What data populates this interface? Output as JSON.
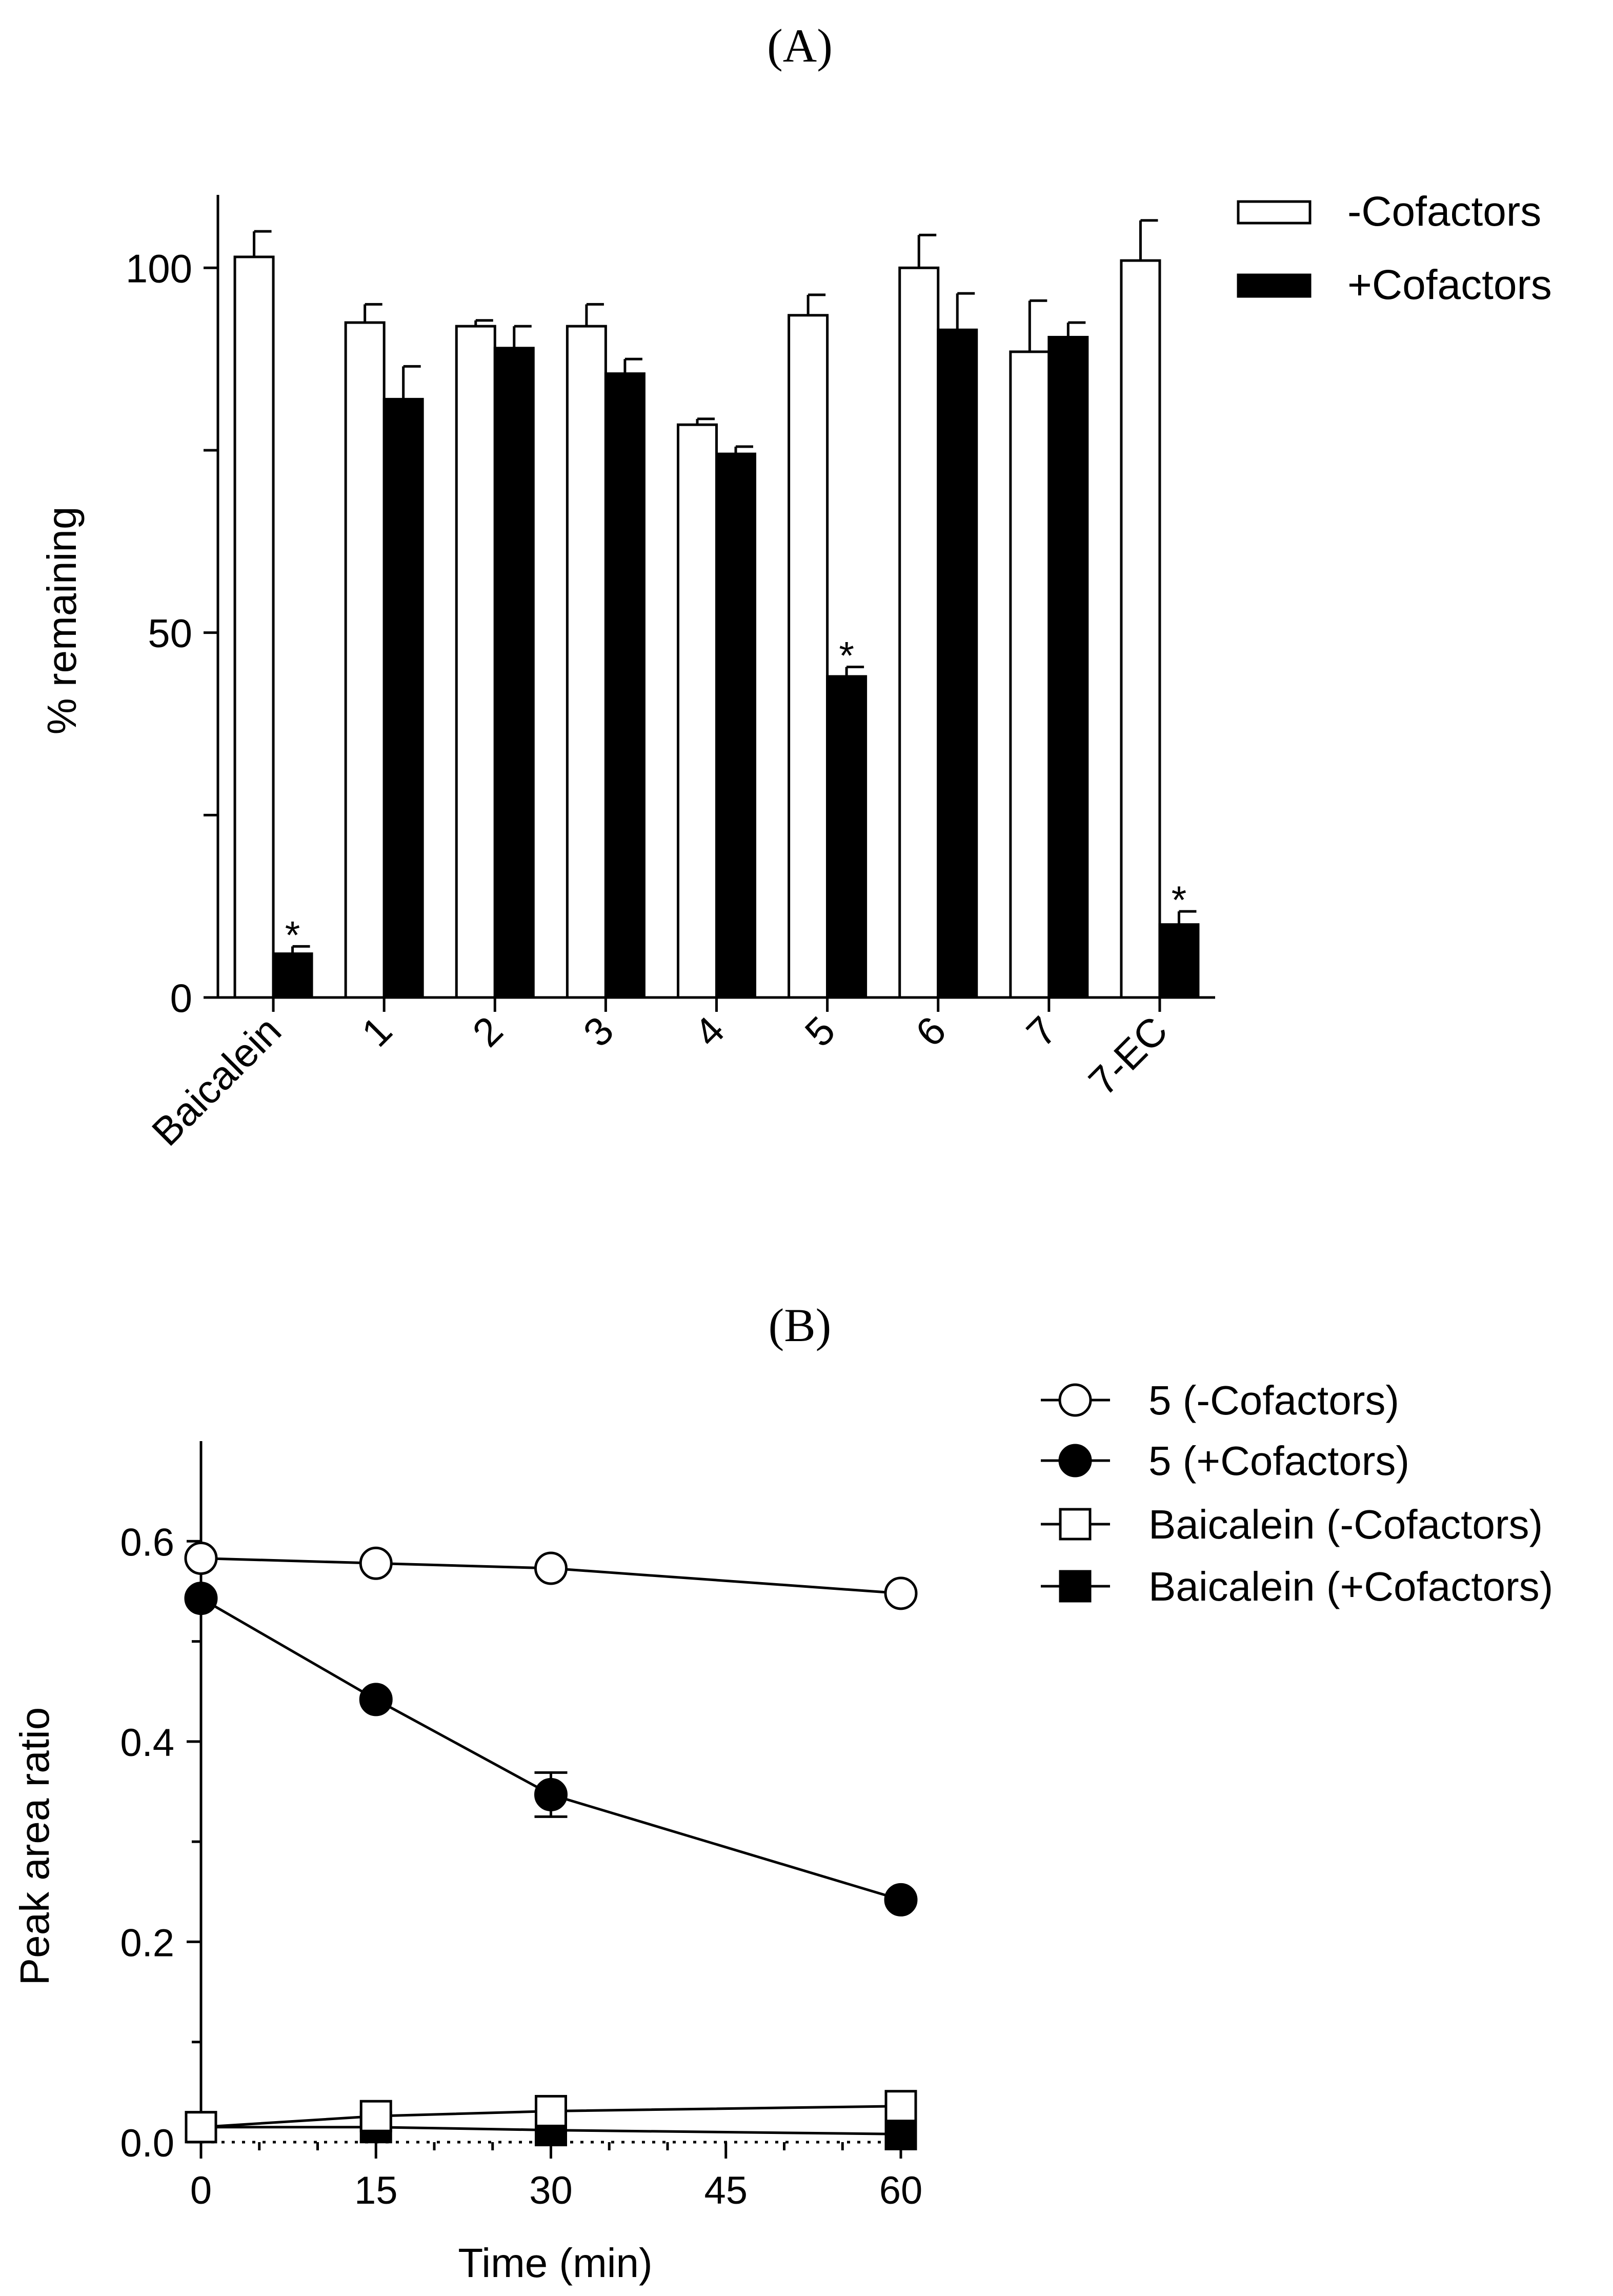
{
  "colors": {
    "ink": "#000000",
    "open": "#ffffff",
    "filled": "#000000"
  },
  "chart_data": [
    {
      "panel_label": "(A)",
      "type": "bar",
      "title": "",
      "xlabel": "",
      "ylabel": "% remaining",
      "ylim": [
        0,
        110
      ],
      "yticks": [
        "0",
        "50",
        "100"
      ],
      "categories": [
        "Baicalein",
        "1",
        "2",
        "3",
        "4",
        "5",
        "6",
        "7",
        "7-EC"
      ],
      "series": [
        {
          "name": "-Cofactors",
          "fill": "open",
          "values": [
            101.5,
            92.5,
            92,
            92,
            78.5,
            93.5,
            100,
            88.5,
            101
          ],
          "errors": [
            3.5,
            2.5,
            0.8,
            3,
            0.8,
            2.8,
            4.5,
            7,
            5.5
          ]
        },
        {
          "name": "+Cofactors",
          "fill": "filled",
          "values": [
            6,
            82,
            89,
            85.5,
            74.5,
            44,
            91.5,
            90.5,
            10
          ],
          "errors": [
            1,
            4.5,
            3,
            2,
            1,
            1.3,
            5,
            2,
            1.8
          ]
        }
      ],
      "annotations": [
        {
          "category": "Baicalein",
          "series": "+Cofactors",
          "text": "*"
        },
        {
          "category": "5",
          "series": "+Cofactors",
          "text": "*"
        },
        {
          "category": "7-EC",
          "series": "+Cofactors",
          "text": "*"
        }
      ],
      "legend_position": "top-right"
    },
    {
      "panel_label": "(B)",
      "type": "line",
      "title": "",
      "xlabel": "Time (min)",
      "ylabel": "Peak area ratio",
      "xlim": [
        0,
        60
      ],
      "ylim": [
        0,
        0.7
      ],
      "xticks": [
        "0",
        "15",
        "30",
        "45",
        "60"
      ],
      "yticks": [
        "0.0",
        "0.2",
        "0.4",
        "0.6"
      ],
      "x": [
        0,
        15,
        30,
        60
      ],
      "series": [
        {
          "name": "5 (-Cofactors)",
          "marker": "circle",
          "fill": "open",
          "values": [
            0.583,
            0.578,
            0.573,
            0.548
          ],
          "errors": [
            0,
            0,
            0,
            0
          ]
        },
        {
          "name": "5 (+Cofactors)",
          "marker": "circle",
          "fill": "filled",
          "values": [
            0.543,
            0.442,
            0.347,
            0.242
          ],
          "errors": [
            0,
            0,
            0.022,
            0
          ]
        },
        {
          "name": "Baicalein (-Cofactors)",
          "marker": "square",
          "fill": "open",
          "values": [
            0.015,
            0.026,
            0.031,
            0.036
          ],
          "errors": [
            0,
            0,
            0,
            0
          ]
        },
        {
          "name": "Baicalein (+Cofactors)",
          "marker": "square",
          "fill": "filled",
          "values": [
            0.015,
            0.015,
            0.012,
            0.008
          ],
          "errors": [
            0,
            0,
            0,
            0
          ]
        }
      ],
      "legend_position": "top-right"
    }
  ]
}
